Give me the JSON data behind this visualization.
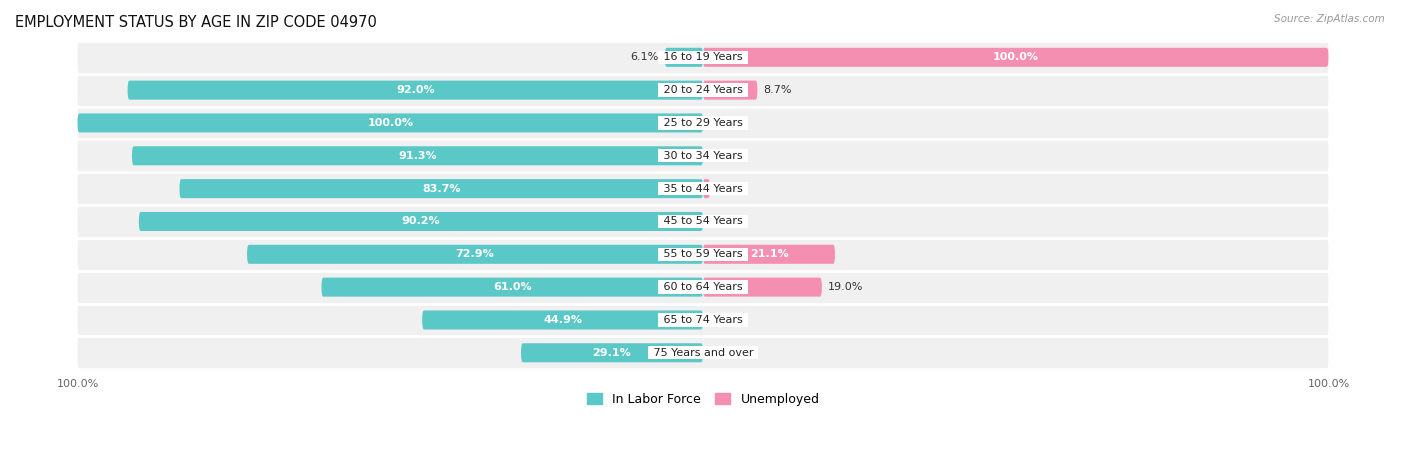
{
  "title": "EMPLOYMENT STATUS BY AGE IN ZIP CODE 04970",
  "source": "Source: ZipAtlas.com",
  "categories": [
    "16 to 19 Years",
    "20 to 24 Years",
    "25 to 29 Years",
    "30 to 34 Years",
    "35 to 44 Years",
    "45 to 54 Years",
    "55 to 59 Years",
    "60 to 64 Years",
    "65 to 74 Years",
    "75 Years and over"
  ],
  "in_labor_force": [
    6.1,
    92.0,
    100.0,
    91.3,
    83.7,
    90.2,
    72.9,
    61.0,
    44.9,
    29.1
  ],
  "unemployed": [
    100.0,
    8.7,
    0.0,
    0.0,
    1.1,
    0.0,
    21.1,
    19.0,
    0.0,
    0.0
  ],
  "labor_color": "#5BC8C8",
  "unemployed_color": "#F48FB1",
  "bg_row_color": "#F0F0F0",
  "bar_height": 0.58,
  "title_fontsize": 10.5,
  "label_fontsize": 8.0,
  "axis_label_fontsize": 8,
  "legend_fontsize": 9,
  "white_label_threshold": 20,
  "max_val": 100.0,
  "xlim_left": -110,
  "xlim_right": 110
}
